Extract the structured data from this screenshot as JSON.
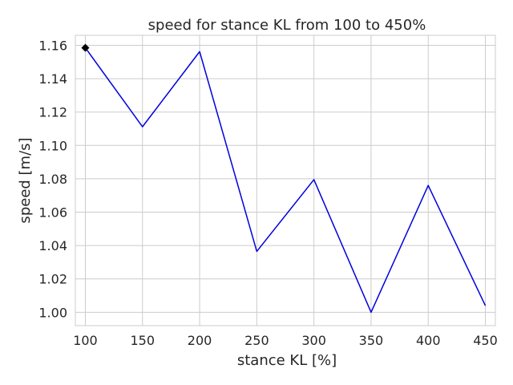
{
  "chart_data": {
    "type": "line",
    "title": "speed for stance KL from 100 to 450%",
    "xlabel": "stance KL [%]",
    "ylabel": "speed [m/s]",
    "x": [
      100,
      150,
      200,
      250,
      300,
      350,
      400,
      450
    ],
    "series": [
      {
        "values": [
          1.1585,
          1.1112,
          1.1562,
          1.0365,
          1.0795,
          1.0,
          1.076,
          1.004
        ],
        "color": "#0000dd"
      }
    ],
    "highlight_point": {
      "x": 100,
      "y": 1.1585,
      "marker": "diamond",
      "color": "#000000"
    },
    "xlim": [
      91.25,
      458.75
    ],
    "ylim": [
      0.992,
      1.166
    ],
    "xticks": [
      100,
      150,
      200,
      250,
      300,
      350,
      400,
      450
    ],
    "yticks": [
      1.0,
      1.02,
      1.04,
      1.06,
      1.08,
      1.1,
      1.12,
      1.14,
      1.16
    ],
    "xtick_labels": [
      "100",
      "150",
      "200",
      "250",
      "300",
      "350",
      "400",
      "450"
    ],
    "ytick_labels": [
      "1.00",
      "1.02",
      "1.04",
      "1.06",
      "1.08",
      "1.10",
      "1.12",
      "1.14",
      "1.16"
    ],
    "grid": true,
    "legend": "none"
  }
}
